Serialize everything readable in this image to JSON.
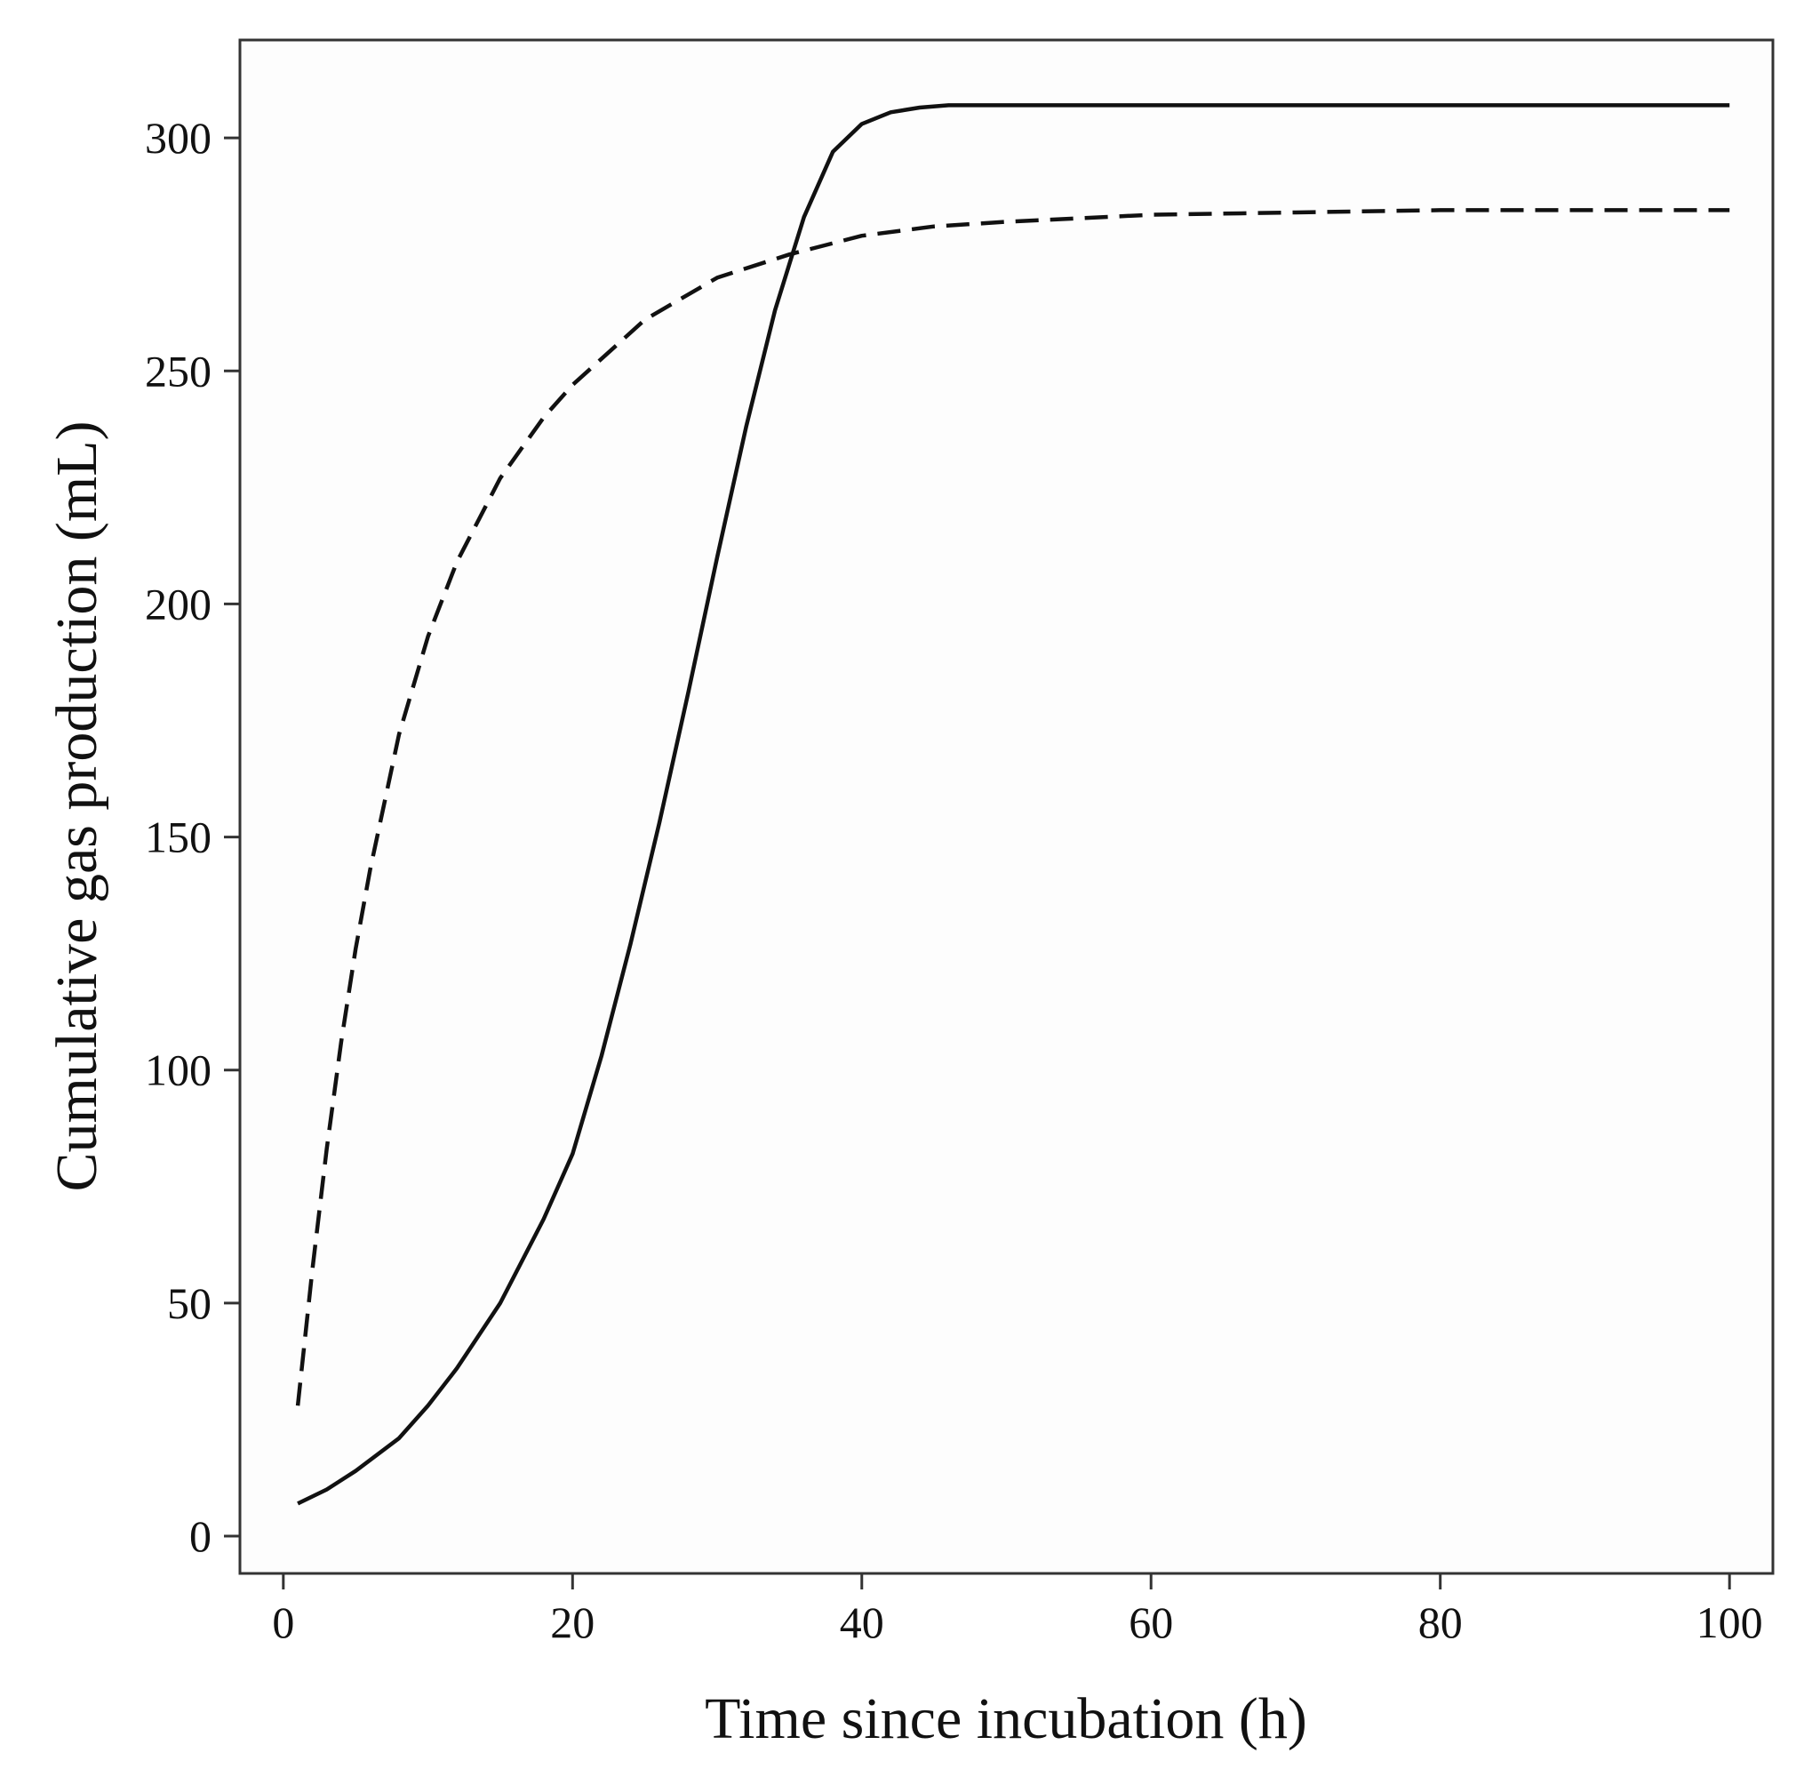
{
  "chart_data": {
    "type": "line",
    "title": "",
    "xlabel": "Time since incubation (h)",
    "ylabel": "Cumulative gas production (mL)",
    "xlim": [
      -3,
      103
    ],
    "ylim": [
      -8,
      321
    ],
    "xticks": [
      0,
      20,
      40,
      60,
      80,
      100
    ],
    "yticks": [
      0,
      50,
      100,
      150,
      200,
      250,
      300
    ],
    "grid": false,
    "legend": "none",
    "series": [
      {
        "style": "solid",
        "color": "#111111",
        "x": [
          1,
          3,
          5,
          8,
          10,
          12,
          15,
          18,
          20,
          22,
          24,
          26,
          28,
          30,
          32,
          34,
          36,
          38,
          40,
          42,
          44,
          46,
          50,
          60,
          80,
          100
        ],
        "y": [
          7,
          10,
          14,
          21,
          28,
          36,
          50,
          68,
          82,
          103,
          127,
          153,
          181,
          210,
          238,
          263,
          283,
          297,
          303,
          305.5,
          306.5,
          307,
          307,
          307,
          307,
          307
        ]
      },
      {
        "style": "dashed",
        "color": "#111111",
        "x": [
          1,
          2,
          3,
          4,
          5,
          6,
          8,
          10,
          12,
          15,
          18,
          20,
          25,
          30,
          35,
          40,
          45,
          50,
          60,
          70,
          80,
          90,
          100
        ],
        "y": [
          28,
          57,
          83,
          106,
          126,
          143,
          172,
          193,
          209,
          227,
          240,
          247,
          261,
          270,
          275,
          279,
          281,
          282,
          283.5,
          284,
          284.5,
          284.5,
          284.5
        ]
      }
    ]
  }
}
